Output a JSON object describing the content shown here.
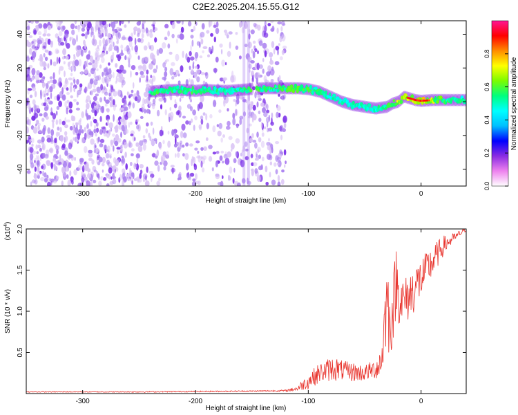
{
  "title": "C2E2.2025.204.15.55.G12",
  "colors": {
    "snr_line": "#e8312a",
    "frame": "#000000",
    "speckle_light": "#d9c2f5",
    "speckle_mid": "#a97ff0",
    "speckle_dark": "#7a2ee8"
  },
  "chart_data": [
    {
      "type": "heatmap",
      "title": "C2E2.2025.204.15.55.G12",
      "xlabel": "Height of straight line (km)",
      "ylabel": "Frequency (Hz)",
      "xlim": [
        -350,
        40
      ],
      "ylim": [
        -50,
        48
      ],
      "x_ticks": [
        -300,
        -200,
        -100,
        0
      ],
      "y_ticks": [
        -40,
        -20,
        0,
        20,
        40
      ],
      "colorbar": {
        "label": "Normalized spectral amplitude",
        "range": [
          0,
          1
        ],
        "ticks": [
          "0.0",
          "0.2",
          "0.4",
          "0.6",
          "0.8"
        ],
        "colors": [
          "#ffffff",
          "#ee82ee",
          "#8a2be2",
          "#0000ff",
          "#00bfff",
          "#00ffff",
          "#00ff7f",
          "#7cfc00",
          "#ffff00",
          "#ff8c00",
          "#ff0000",
          "#ff1493"
        ]
      },
      "ridge": {
        "x": [
          -240,
          -230,
          -220,
          -210,
          -200,
          -190,
          -180,
          -170,
          -160,
          -150,
          -140,
          -130,
          -120,
          -110,
          -100,
          -90,
          -80,
          -70,
          -60,
          -50,
          -40,
          -30,
          -25,
          -20,
          -15,
          -10,
          -5,
          0,
          10,
          20,
          30,
          40
        ],
        "y": [
          6,
          6.5,
          7,
          7,
          6.5,
          7,
          6.5,
          6.5,
          7,
          7.5,
          8,
          8,
          8,
          8,
          7.5,
          6,
          3,
          0,
          -2,
          -3,
          -4,
          -3,
          -1,
          0,
          3,
          2,
          1,
          0.5,
          1,
          1,
          1,
          1
        ],
        "amp": [
          0.55,
          0.6,
          0.55,
          0.55,
          0.6,
          0.55,
          0.55,
          0.5,
          0.55,
          0.6,
          0.6,
          0.55,
          0.6,
          0.7,
          0.6,
          0.55,
          0.5,
          0.45,
          0.5,
          0.45,
          0.5,
          0.6,
          0.7,
          0.8,
          0.75,
          0.85,
          0.95,
          0.9,
          0.8,
          0.6,
          0.55,
          0.5
        ]
      },
      "noise_regions": [
        {
          "x_range": [
            -350,
            -260
          ],
          "density": 1.0
        },
        {
          "x_range": [
            -260,
            -235
          ],
          "density": 0.7
        },
        {
          "x_range": [
            -235,
            -150
          ],
          "density": 0.45
        },
        {
          "x_range": [
            -150,
            -120
          ],
          "density": 0.65
        }
      ]
    },
    {
      "type": "line",
      "xlabel": "Height of straight line (km)",
      "ylabel": "SNR (10 * v/v)",
      "y_multiplier": "(x10",
      "y_multiplier_exponent": "4",
      "y_multiplier_close": ")",
      "xlim": [
        -350,
        40
      ],
      "ylim": [
        0,
        2.0
      ],
      "x_ticks": [
        -300,
        -200,
        -100,
        0
      ],
      "y_ticks": [
        "0.5",
        "1.0",
        "1.5",
        "2.0"
      ],
      "series": [
        {
          "x": [
            -350,
            -300,
            -250,
            -200,
            -150,
            -120,
            -110,
            -100,
            -90,
            -80,
            -75,
            -70,
            -60,
            -50,
            -40,
            -35,
            -32,
            -30,
            -28,
            -25,
            -22,
            -20,
            -15,
            -10,
            -5,
            0,
            10,
            20,
            30,
            40
          ],
          "mean": [
            0.02,
            0.02,
            0.02,
            0.025,
            0.03,
            0.035,
            0.06,
            0.15,
            0.25,
            0.3,
            0.3,
            0.28,
            0.26,
            0.25,
            0.3,
            0.4,
            0.9,
            1.2,
            0.8,
            1.0,
            1.4,
            1.2,
            1.1,
            1.2,
            1.3,
            1.4,
            1.6,
            1.8,
            1.9,
            2.0
          ],
          "spread": [
            0.005,
            0.005,
            0.006,
            0.007,
            0.008,
            0.01,
            0.03,
            0.1,
            0.12,
            0.15,
            0.15,
            0.12,
            0.12,
            0.1,
            0.12,
            0.25,
            0.45,
            0.5,
            0.45,
            0.4,
            0.45,
            0.35,
            0.3,
            0.3,
            0.3,
            0.25,
            0.2,
            0.12,
            0.05,
            0.03
          ]
        }
      ]
    }
  ]
}
